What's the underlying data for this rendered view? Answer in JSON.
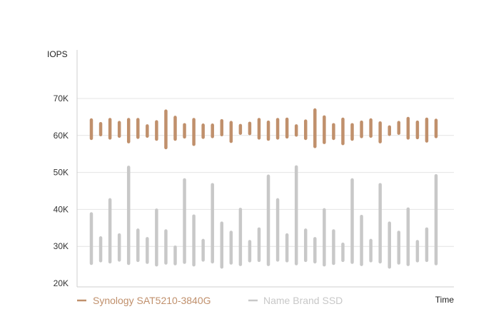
{
  "chart_data": {
    "type": "range-bar",
    "ylabel": "IOPS",
    "xlabel": "Time",
    "ylim": [
      20000,
      70000
    ],
    "yticks": [
      {
        "value": 20000,
        "label": "20K"
      },
      {
        "value": 30000,
        "label": "30K"
      },
      {
        "value": 40000,
        "label": "40K"
      },
      {
        "value": 50000,
        "label": "50K"
      },
      {
        "value": 60000,
        "label": "60K"
      },
      {
        "value": 70000,
        "label": "70K"
      }
    ],
    "grid": true,
    "legend_position": "bottom-left",
    "series": [
      {
        "name": "Synology SAT5210-3840G",
        "color": "#c0906c",
        "ranges": [
          [
            59200,
            64200
          ],
          [
            60200,
            63200
          ],
          [
            59300,
            64300
          ],
          [
            59800,
            63500
          ],
          [
            58300,
            64300
          ],
          [
            59500,
            64300
          ],
          [
            59800,
            62600
          ],
          [
            59000,
            63700
          ],
          [
            56700,
            66600
          ],
          [
            59000,
            64900
          ],
          [
            59600,
            62900
          ],
          [
            57600,
            64300
          ],
          [
            59500,
            62800
          ],
          [
            59700,
            62800
          ],
          [
            60200,
            64000
          ],
          [
            58400,
            63500
          ],
          [
            60600,
            62700
          ],
          [
            60500,
            63300
          ],
          [
            59300,
            64300
          ],
          [
            59000,
            63600
          ],
          [
            59300,
            64300
          ],
          [
            59600,
            64400
          ],
          [
            60100,
            62600
          ],
          [
            59200,
            63900
          ],
          [
            57000,
            66900
          ],
          [
            58100,
            65000
          ],
          [
            59200,
            62900
          ],
          [
            57800,
            64400
          ],
          [
            59000,
            62900
          ],
          [
            59700,
            63600
          ],
          [
            59800,
            64200
          ],
          [
            58300,
            63400
          ],
          [
            60300,
            62300
          ],
          [
            60600,
            63500
          ],
          [
            59300,
            64600
          ],
          [
            59400,
            63600
          ],
          [
            58500,
            64400
          ],
          [
            59700,
            64100
          ]
        ]
      },
      {
        "name": "Name Brand SSD",
        "color": "#c8c8c8",
        "ranges": [
          [
            25400,
            38800
          ],
          [
            26100,
            32300
          ],
          [
            25800,
            42600
          ],
          [
            26300,
            33100
          ],
          [
            25400,
            51400
          ],
          [
            26200,
            34400
          ],
          [
            25700,
            32100
          ],
          [
            25000,
            39800
          ],
          [
            25500,
            34200
          ],
          [
            25300,
            29800
          ],
          [
            25700,
            48000
          ],
          [
            25000,
            38200
          ],
          [
            26300,
            31600
          ],
          [
            25800,
            46700
          ],
          [
            24400,
            36300
          ],
          [
            25500,
            33800
          ],
          [
            25100,
            40000
          ],
          [
            26100,
            31300
          ],
          [
            26200,
            34700
          ],
          [
            25100,
            49000
          ],
          [
            26300,
            42600
          ],
          [
            26100,
            33100
          ],
          [
            25300,
            51500
          ],
          [
            26200,
            34400
          ],
          [
            25800,
            32100
          ],
          [
            25000,
            39900
          ],
          [
            25400,
            34200
          ],
          [
            26200,
            30600
          ],
          [
            25700,
            48000
          ],
          [
            25100,
            38100
          ],
          [
            26100,
            31600
          ],
          [
            25800,
            46700
          ],
          [
            24400,
            36300
          ],
          [
            25500,
            33800
          ],
          [
            25100,
            40100
          ],
          [
            26100,
            31300
          ],
          [
            26200,
            34700
          ],
          [
            25300,
            49100
          ]
        ]
      }
    ]
  }
}
